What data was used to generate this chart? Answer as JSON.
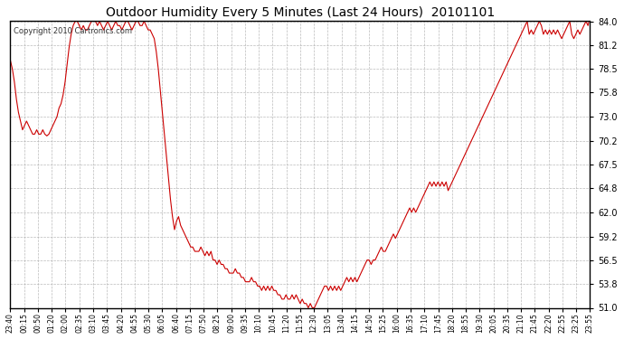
{
  "title": "Outdoor Humidity Every 5 Minutes (Last 24 Hours)  20101101",
  "copyright": "Copyright 2010 Cartronics.com",
  "line_color": "#cc0000",
  "background_color": "#ffffff",
  "plot_bg_color": "#ffffff",
  "grid_color": "#aaaaaa",
  "ylim": [
    51.0,
    84.0
  ],
  "yticks": [
    51.0,
    53.8,
    56.5,
    59.2,
    62.0,
    64.8,
    67.5,
    70.2,
    73.0,
    75.8,
    78.5,
    81.2,
    84.0
  ],
  "xtick_labels": [
    "23:40",
    "00:15",
    "00:50",
    "01:20",
    "02:00",
    "02:35",
    "03:10",
    "03:45",
    "04:20",
    "04:55",
    "05:30",
    "06:05",
    "06:40",
    "07:15",
    "07:50",
    "08:25",
    "09:00",
    "09:35",
    "10:10",
    "10:45",
    "11:20",
    "11:55",
    "12:30",
    "13:05",
    "13:40",
    "14:15",
    "14:50",
    "15:25",
    "16:00",
    "16:35",
    "17:10",
    "17:45",
    "18:20",
    "18:55",
    "19:30",
    "20:05",
    "20:35",
    "21:10",
    "21:45",
    "22:20",
    "22:55",
    "23:25",
    "23:55"
  ],
  "y_values": [
    79.5,
    78.5,
    77.0,
    75.0,
    73.5,
    72.5,
    71.5,
    72.0,
    72.5,
    72.0,
    71.5,
    71.0,
    71.0,
    71.5,
    71.0,
    71.0,
    71.5,
    71.0,
    70.8,
    71.0,
    71.5,
    72.0,
    72.5,
    73.0,
    74.0,
    74.5,
    75.5,
    77.0,
    79.0,
    81.0,
    82.5,
    83.5,
    84.0,
    84.0,
    83.5,
    83.0,
    83.5,
    83.0,
    83.0,
    83.5,
    84.0,
    84.0,
    84.0,
    83.5,
    84.0,
    83.5,
    83.0,
    83.5,
    84.0,
    83.5,
    83.0,
    83.5,
    84.0,
    83.5,
    83.5,
    83.0,
    83.5,
    84.0,
    84.0,
    83.5,
    83.0,
    83.5,
    84.0,
    84.0,
    83.5,
    83.5,
    84.0,
    83.5,
    83.0,
    83.0,
    82.5,
    82.0,
    80.5,
    78.5,
    76.0,
    73.5,
    71.0,
    68.5,
    66.0,
    63.5,
    61.5,
    60.0,
    61.0,
    61.5,
    60.5,
    60.0,
    59.5,
    59.0,
    58.5,
    58.0,
    58.0,
    57.5,
    57.5,
    57.5,
    58.0,
    57.5,
    57.0,
    57.5,
    57.0,
    57.5,
    56.5,
    56.5,
    56.0,
    56.5,
    56.0,
    56.0,
    55.5,
    55.5,
    55.0,
    55.0,
    55.0,
    55.5,
    55.0,
    55.0,
    54.5,
    54.5,
    54.0,
    54.0,
    54.0,
    54.5,
    54.0,
    54.0,
    53.5,
    53.5,
    53.0,
    53.5,
    53.0,
    53.5,
    53.0,
    53.5,
    53.0,
    53.0,
    52.5,
    52.5,
    52.0,
    52.0,
    52.5,
    52.0,
    52.0,
    52.5,
    52.0,
    52.5,
    52.0,
    51.5,
    52.0,
    51.5,
    51.5,
    51.0,
    51.5,
    51.0,
    51.0,
    51.5,
    52.0,
    52.5,
    53.0,
    53.5,
    53.5,
    53.0,
    53.5,
    53.0,
    53.5,
    53.0,
    53.5,
    53.0,
    53.5,
    54.0,
    54.5,
    54.0,
    54.5,
    54.0,
    54.5,
    54.0,
    54.5,
    55.0,
    55.5,
    56.0,
    56.5,
    56.5,
    56.0,
    56.5,
    56.5,
    57.0,
    57.5,
    58.0,
    57.5,
    57.5,
    58.0,
    58.5,
    59.0,
    59.5,
    59.0,
    59.5,
    60.0,
    60.5,
    61.0,
    61.5,
    62.0,
    62.5,
    62.0,
    62.5,
    62.0,
    62.5,
    63.0,
    63.5,
    64.0,
    64.5,
    65.0,
    65.5,
    65.0,
    65.5,
    65.0,
    65.5,
    65.0,
    65.5,
    65.0,
    65.5,
    64.5,
    65.0,
    65.5,
    66.0,
    66.5,
    67.0,
    67.5,
    68.0,
    68.5,
    69.0,
    69.5,
    70.0,
    70.5,
    71.0,
    71.5,
    72.0,
    72.5,
    73.0,
    73.5,
    74.0,
    74.5,
    75.0,
    75.5,
    76.0,
    76.5,
    77.0,
    77.5,
    78.0,
    78.5,
    79.0,
    79.5,
    80.0,
    80.5,
    81.0,
    81.5,
    82.0,
    82.5,
    83.0,
    83.5,
    84.0,
    82.5,
    83.0,
    82.5,
    83.0,
    83.5,
    84.0,
    83.5,
    82.5,
    83.0,
    82.5,
    83.0,
    82.5,
    83.0,
    82.5,
    83.0,
    82.5,
    82.0,
    82.5,
    83.0,
    83.5,
    84.0,
    82.5,
    82.0,
    82.5,
    83.0,
    82.5,
    83.0,
    83.5,
    84.0,
    83.5,
    84.5
  ]
}
